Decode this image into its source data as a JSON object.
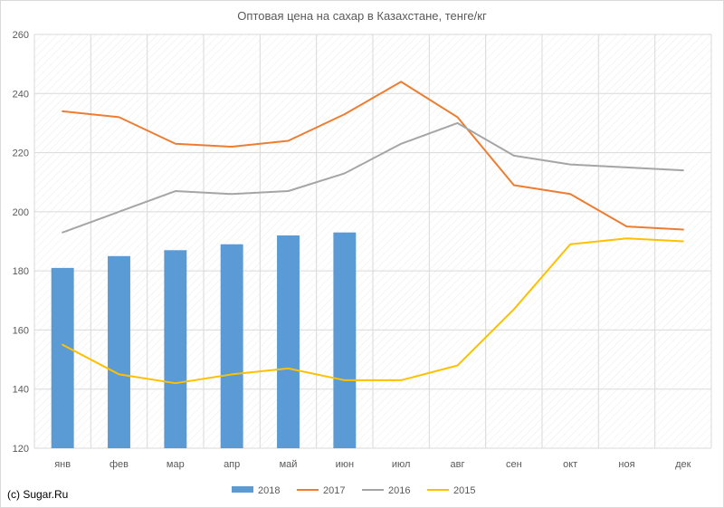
{
  "chart_data": {
    "type": "bar",
    "title": "Оптовая цена на сахар в Казахстане, тенге/кг",
    "xlabel": "",
    "ylabel": "",
    "ylim": [
      120,
      260
    ],
    "yticks": [
      120,
      140,
      160,
      180,
      200,
      220,
      240,
      260
    ],
    "categories": [
      "янв",
      "фев",
      "мар",
      "апр",
      "май",
      "июн",
      "июл",
      "авг",
      "сен",
      "окт",
      "ноя",
      "дек"
    ],
    "grid": true,
    "plot_background": "diagonal-hatch",
    "legend_position": "bottom",
    "series": [
      {
        "name": "2018",
        "type": "bar",
        "color": "#5b9bd5",
        "values": [
          181,
          185,
          187,
          189,
          192,
          193,
          null,
          null,
          null,
          null,
          null,
          null
        ]
      },
      {
        "name": "2017",
        "type": "line",
        "color": "#ed7d31",
        "values": [
          234,
          232,
          223,
          222,
          224,
          233,
          244,
          232,
          209,
          206,
          195,
          194
        ]
      },
      {
        "name": "2016",
        "type": "line",
        "color": "#a5a5a5",
        "values": [
          193,
          200,
          207,
          206,
          207,
          213,
          223,
          230,
          219,
          216,
          215,
          214
        ]
      },
      {
        "name": "2015",
        "type": "line",
        "color": "#ffc000",
        "values": [
          155,
          145,
          142,
          145,
          147,
          143,
          143,
          148,
          167,
          189,
          191,
          190
        ]
      }
    ]
  },
  "credit": "(c) Sugar.Ru"
}
